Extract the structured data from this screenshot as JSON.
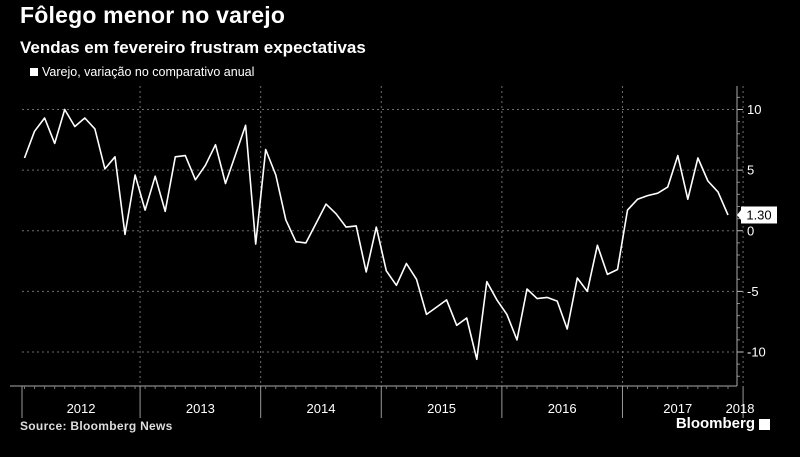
{
  "title": "Fôlego menor no varejo",
  "subtitle": "Vendas em fevereiro frustram expectativas",
  "source": "Source: Bloomberg News",
  "brand": "Bloomberg",
  "colors": {
    "background": "#000000",
    "line": "#ffffff",
    "grid": "#6e6e6e"
  },
  "chart_data": {
    "type": "line",
    "title": "Fôlego menor no varejo",
    "subtitle": "Vendas em fevereiro frustram expectativas",
    "series": [
      {
        "name": "Varejo, variação no comparativo anual",
        "start": "2012-01",
        "frequency": "monthly",
        "values": [
          6.0,
          8.2,
          9.3,
          7.2,
          10.0,
          8.6,
          9.3,
          8.4,
          5.1,
          6.1,
          -0.3,
          4.6,
          1.7,
          4.5,
          1.6,
          6.1,
          6.2,
          4.2,
          5.4,
          7.1,
          3.9,
          6.3,
          8.7,
          -1.1,
          6.7,
          4.6,
          0.9,
          -0.9,
          -1.0,
          0.6,
          2.2,
          1.4,
          0.3,
          0.4,
          -3.4,
          0.3,
          -3.3,
          -4.5,
          -2.7,
          -4.0,
          -6.9,
          -6.3,
          -5.7,
          -7.8,
          -7.2,
          -10.6,
          -4.2,
          -5.7,
          -6.9,
          -9.0,
          -4.8,
          -5.6,
          -5.5,
          -5.8,
          -8.1,
          -3.9,
          -5.0,
          -1.2,
          -3.6,
          -3.2,
          1.7,
          2.6,
          2.9,
          3.1,
          3.6,
          6.2,
          2.6,
          6.0,
          4.1,
          3.2,
          1.3
        ]
      }
    ],
    "x_labels": [
      "2012",
      "2013",
      "2014",
      "2015",
      "2016",
      "2017",
      "2018"
    ],
    "y_ticks": [
      10,
      5,
      0,
      -5,
      -10
    ],
    "ylim": [
      -12.7,
      11.9
    ],
    "last_value_label": "1.30",
    "y_axis_position": "right",
    "grid": true,
    "legend_position": "top-left"
  }
}
